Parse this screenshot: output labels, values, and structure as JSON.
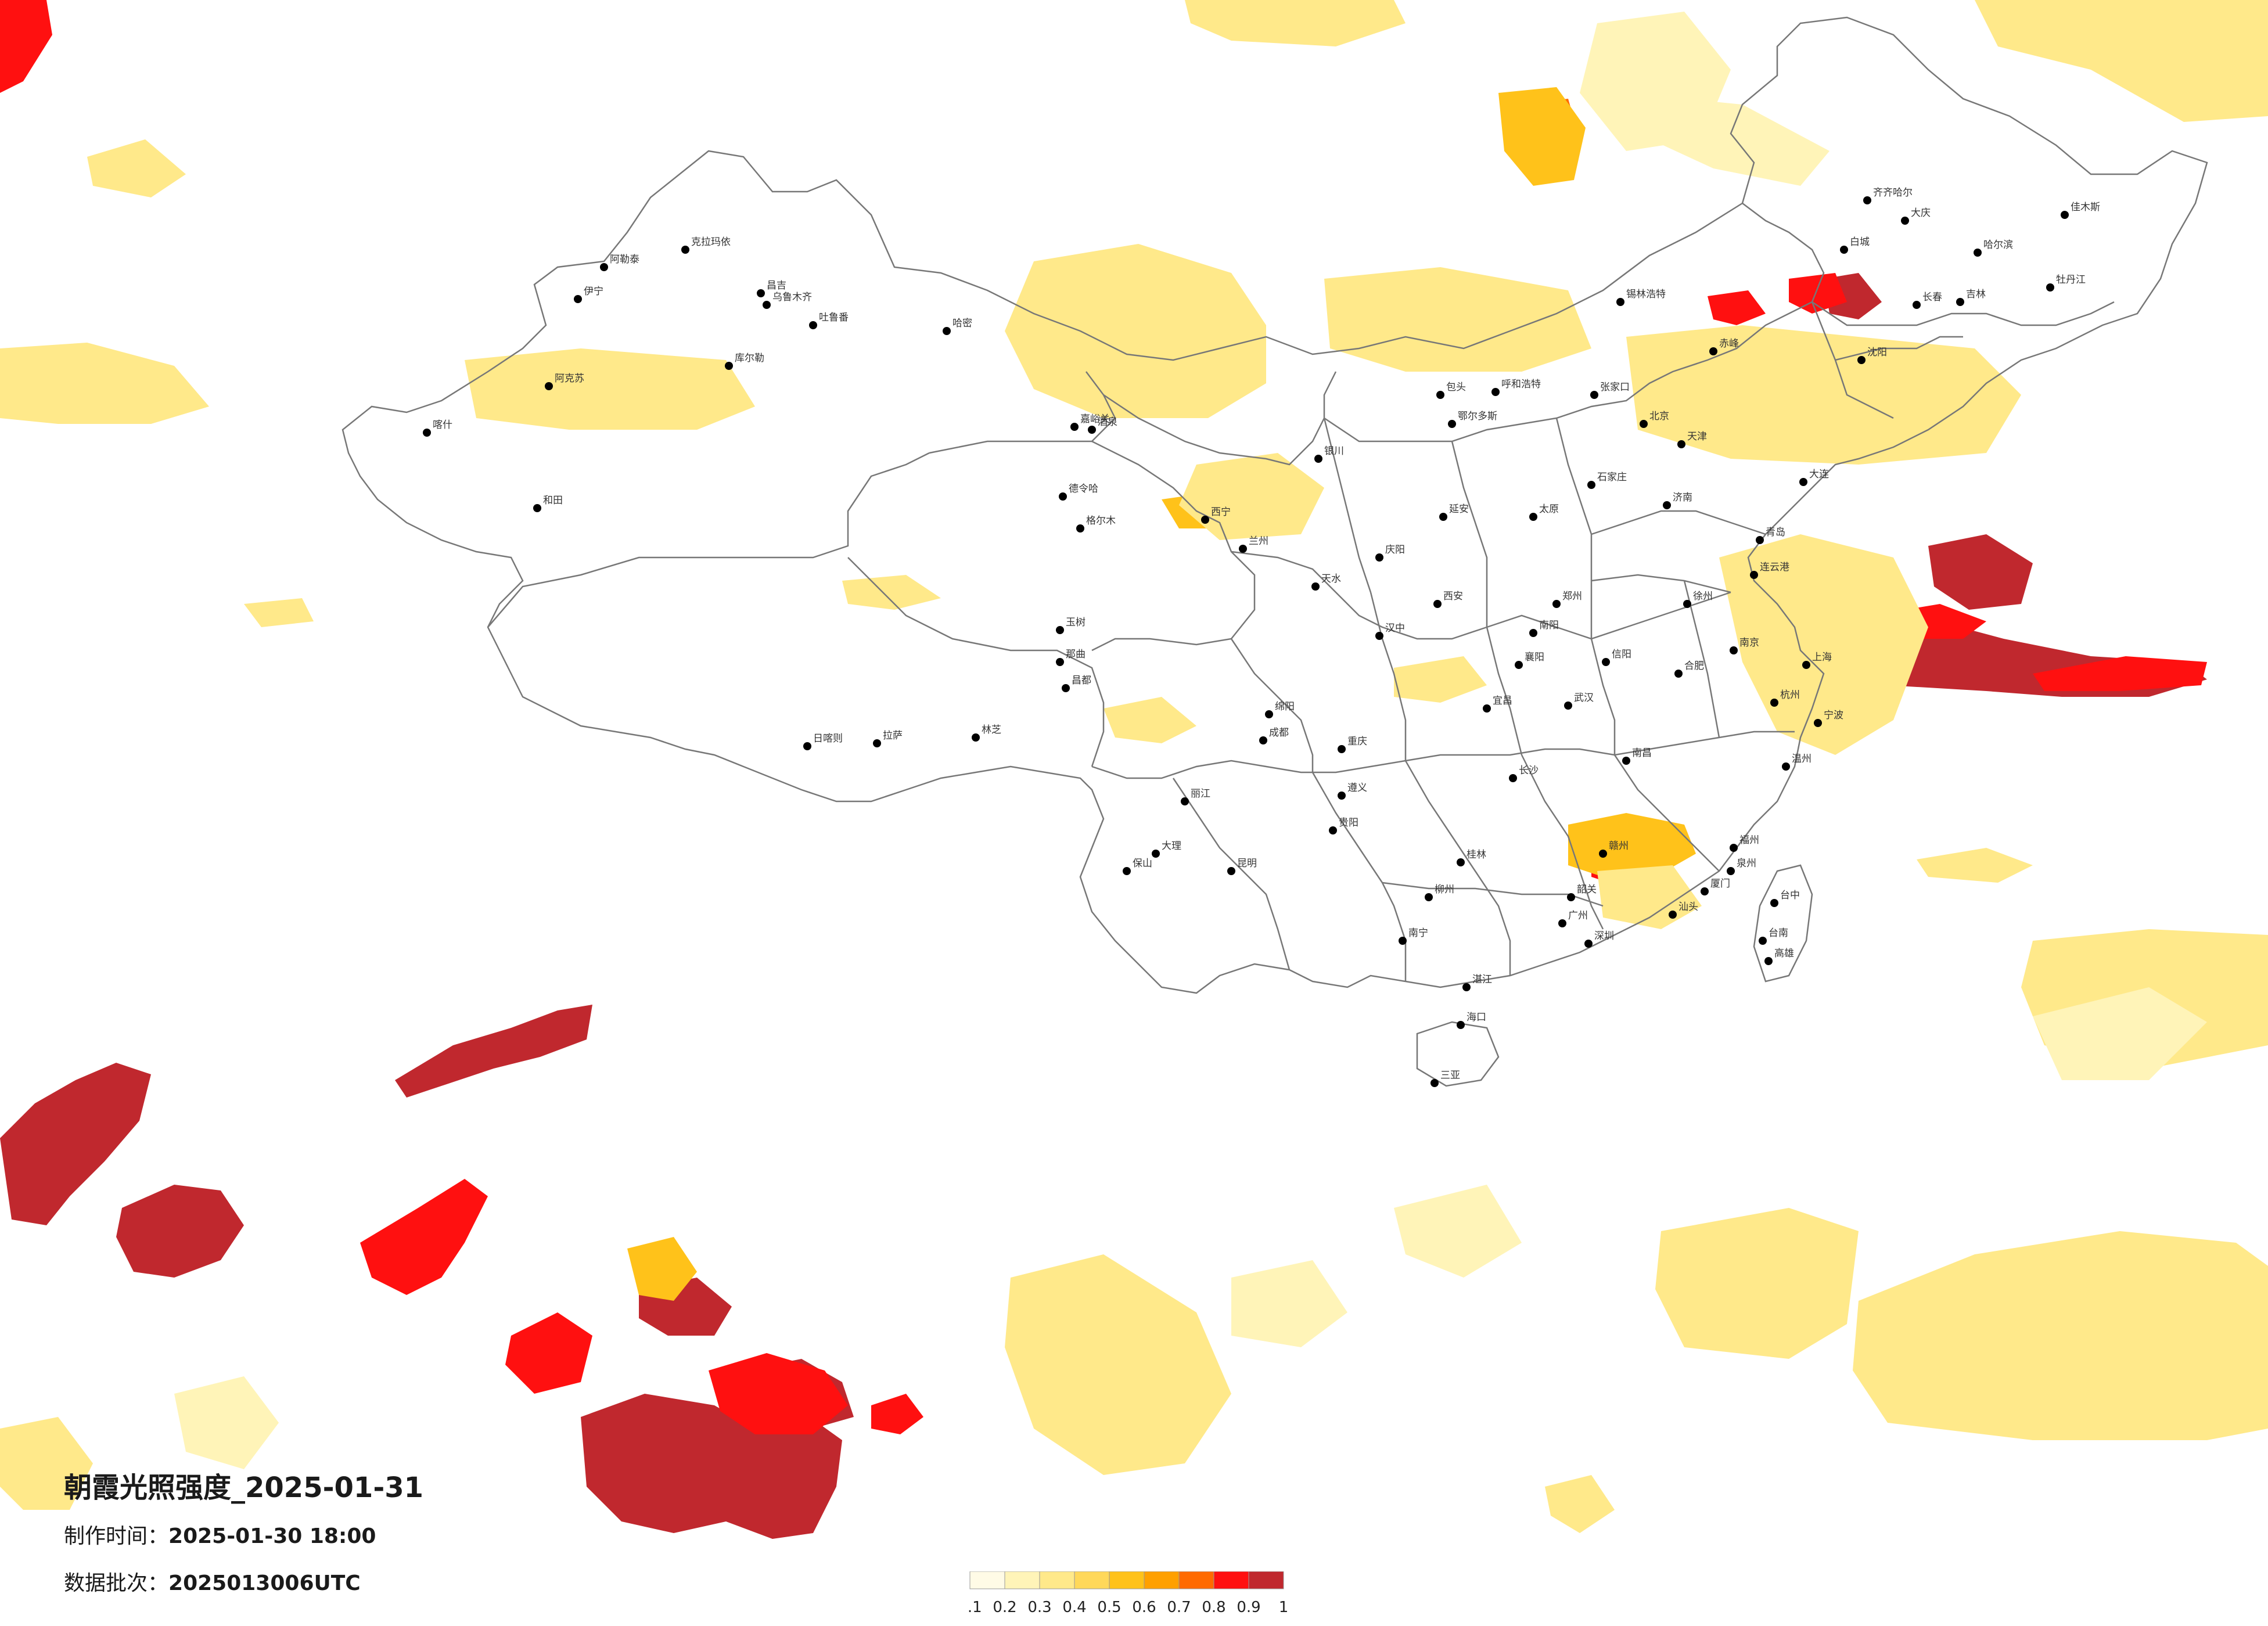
{
  "title": "朝霞光照强度_2025-01-31",
  "made_label": "制作时间：",
  "made_value": "2025-01-30 18:00",
  "batch_label": "数据批次：",
  "batch_value": "2025013006UTC",
  "legend": {
    "ticks": [
      "0.1",
      "0.2",
      "0.3",
      "0.4",
      "0.5",
      "0.6",
      "0.7",
      "0.8",
      "0.9",
      "1"
    ],
    "colors": [
      "#fffbe6",
      "#fff4b8",
      "#ffe98a",
      "#ffd85a",
      "#ffc21a",
      "#ffa000",
      "#ff6a00",
      "#ff1010",
      "#c0282e"
    ]
  },
  "cities": [
    [
      "克拉玛依",
      1180,
      430
    ],
    [
      "阿勒泰",
      1040,
      460
    ],
    [
      "伊宁",
      995,
      515
    ],
    [
      "昌吉",
      1310,
      505
    ],
    [
      "乌鲁木齐",
      1320,
      525
    ],
    [
      "吐鲁番",
      1400,
      560
    ],
    [
      "哈密",
      1630,
      570
    ],
    [
      "阿克苏",
      945,
      665
    ],
    [
      "库尔勒",
      1255,
      630
    ],
    [
      "喀什",
      735,
      745
    ],
    [
      "和田",
      925,
      875
    ],
    [
      "德令哈",
      1830,
      855
    ],
    [
      "格尔木",
      1860,
      910
    ],
    [
      "嘉峪关",
      1850,
      735
    ],
    [
      "酒泉",
      1880,
      740
    ],
    [
      "西宁",
      2075,
      895
    ],
    [
      "兰州",
      2140,
      945
    ],
    [
      "银川",
      2270,
      790
    ],
    [
      "呼和浩特",
      2575,
      675
    ],
    [
      "包头",
      2480,
      680
    ],
    [
      "鄂尔多斯",
      2500,
      730
    ],
    [
      "那曲",
      1825,
      1140
    ],
    [
      "昌都",
      1835,
      1185
    ],
    [
      "日喀则",
      1390,
      1285
    ],
    [
      "拉萨",
      1510,
      1280
    ],
    [
      "林芝",
      1680,
      1270
    ],
    [
      "玉树",
      1825,
      1085
    ],
    [
      "成都",
      2175,
      1275
    ],
    [
      "重庆",
      2310,
      1290
    ],
    [
      "绵阳",
      2185,
      1230
    ],
    [
      "昆明",
      2120,
      1500
    ],
    [
      "丽江",
      2040,
      1380
    ],
    [
      "大理",
      1990,
      1470
    ],
    [
      "保山",
      1940,
      1500
    ],
    [
      "贵阳",
      2295,
      1430
    ],
    [
      "遵义",
      2310,
      1370
    ],
    [
      "南宁",
      2415,
      1620
    ],
    [
      "桂林",
      2515,
      1485
    ],
    [
      "柳州",
      2460,
      1545
    ],
    [
      "海口",
      2515,
      1765
    ],
    [
      "三亚",
      2470,
      1865
    ],
    [
      "广州",
      2690,
      1590
    ],
    [
      "深圳",
      2735,
      1625
    ],
    [
      "湛江",
      2525,
      1700
    ],
    [
      "长沙",
      2605,
      1340
    ],
    [
      "武汉",
      2700,
      1215
    ],
    [
      "南昌",
      2800,
      1310
    ],
    [
      "福州",
      2985,
      1460
    ],
    [
      "厦门",
      2935,
      1535
    ],
    [
      "杭州",
      3055,
      1210
    ],
    [
      "上海",
      3110,
      1145
    ],
    [
      "南京",
      2985,
      1120
    ],
    [
      "合肥",
      2890,
      1160
    ],
    [
      "济南",
      2870,
      870
    ],
    [
      "青岛",
      3030,
      930
    ],
    [
      "郑州",
      2680,
      1040
    ],
    [
      "西安",
      2475,
      1040
    ],
    [
      "太原",
      2640,
      890
    ],
    [
      "石家庄",
      2740,
      835
    ],
    [
      "北京",
      2830,
      730
    ],
    [
      "天津",
      2895,
      765
    ],
    [
      "沈阳",
      3205,
      620
    ],
    [
      "大连",
      3105,
      830
    ],
    [
      "长春",
      3300,
      525
    ],
    [
      "吉林",
      3375,
      520
    ],
    [
      "哈尔滨",
      3405,
      435
    ],
    [
      "齐齐哈尔",
      3215,
      345
    ],
    [
      "大庆",
      3280,
      380
    ],
    [
      "佳木斯",
      3555,
      370
    ],
    [
      "牡丹江",
      3530,
      495
    ],
    [
      "白城",
      3175,
      430
    ],
    [
      "锡林浩特",
      2790,
      520
    ],
    [
      "赤峰",
      2950,
      605
    ],
    [
      "张家口",
      2745,
      680
    ],
    [
      "台中",
      3055,
      1555
    ],
    [
      "台南",
      3035,
      1620
    ],
    [
      "高雄",
      3045,
      1655
    ],
    [
      "延安",
      2485,
      890
    ],
    [
      "庆阳",
      2375,
      960
    ],
    [
      "天水",
      2265,
      1010
    ],
    [
      "汉中",
      2375,
      1095
    ],
    [
      "宜昌",
      2560,
      1220
    ],
    [
      "襄阳",
      2615,
      1145
    ],
    [
      "南阳",
      2640,
      1090
    ],
    [
      "信阳",
      2765,
      1140
    ],
    [
      "徐州",
      2905,
      1040
    ],
    [
      "连云港",
      3020,
      990
    ],
    [
      "温州",
      3075,
      1320
    ],
    [
      "宁波",
      3130,
      1245
    ],
    [
      "赣州",
      2760,
      1470
    ],
    [
      "韶关",
      2705,
      1545
    ],
    [
      "汕头",
      2880,
      1575
    ],
    [
      "泉州",
      2980,
      1500
    ]
  ]
}
